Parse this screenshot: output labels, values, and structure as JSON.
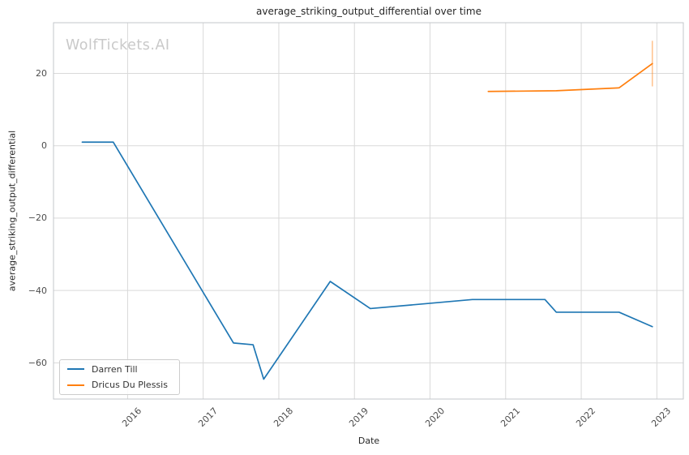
{
  "watermark": {
    "text": "WolfTickets.AI",
    "color": "#c9c9c9"
  },
  "colors": {
    "grid": "#d9d9d9",
    "spine": "#c3c7cb",
    "tick_text": "#4d4d4d",
    "title_text": "#262626",
    "series_blue": "#1f77b4",
    "series_orange": "#ff7f0e"
  },
  "chart_data": {
    "type": "line",
    "title": "average_striking_output_differential over time",
    "xlabel": "Date",
    "ylabel": "average_striking_output_differential",
    "xlim": [
      2015.02,
      2023.35
    ],
    "ylim": [
      -70,
      34
    ],
    "grid": true,
    "legend_position": "lower left",
    "x_ticks": [
      {
        "value": 2016,
        "label": "2016"
      },
      {
        "value": 2017,
        "label": "2017"
      },
      {
        "value": 2018,
        "label": "2018"
      },
      {
        "value": 2019,
        "label": "2019"
      },
      {
        "value": 2020,
        "label": "2020"
      },
      {
        "value": 2021,
        "label": "2021"
      },
      {
        "value": 2022,
        "label": "2022"
      },
      {
        "value": 2023,
        "label": "2023"
      }
    ],
    "y_ticks": [
      {
        "value": 20,
        "label": "20"
      },
      {
        "value": 0,
        "label": "0"
      },
      {
        "value": -20,
        "label": "−20"
      },
      {
        "value": -40,
        "label": "−40"
      },
      {
        "value": -60,
        "label": "−60"
      }
    ],
    "series": [
      {
        "name": "Darren Till",
        "color": "#1f77b4",
        "points": [
          [
            2015.4,
            1
          ],
          [
            2015.81,
            1
          ],
          [
            2017.4,
            -54.5
          ],
          [
            2017.66,
            -55
          ],
          [
            2017.8,
            -64.5
          ],
          [
            2018.68,
            -37.5
          ],
          [
            2019.21,
            -45
          ],
          [
            2020.56,
            -42.5
          ],
          [
            2021.52,
            -42.5
          ],
          [
            2021.67,
            -46
          ],
          [
            2022.5,
            -46
          ],
          [
            2022.94,
            -50
          ]
        ]
      },
      {
        "name": "Dricus Du Plessis",
        "color": "#ff7f0e",
        "points": [
          [
            2020.77,
            15
          ],
          [
            2021.67,
            15.2
          ],
          [
            2022.5,
            16
          ],
          [
            2022.94,
            22.7
          ]
        ],
        "error_bar": {
          "x": 2022.94,
          "y": 22.7,
          "yerr": 6.3,
          "color": "rgba(255,127,14,0.45)"
        }
      }
    ]
  }
}
